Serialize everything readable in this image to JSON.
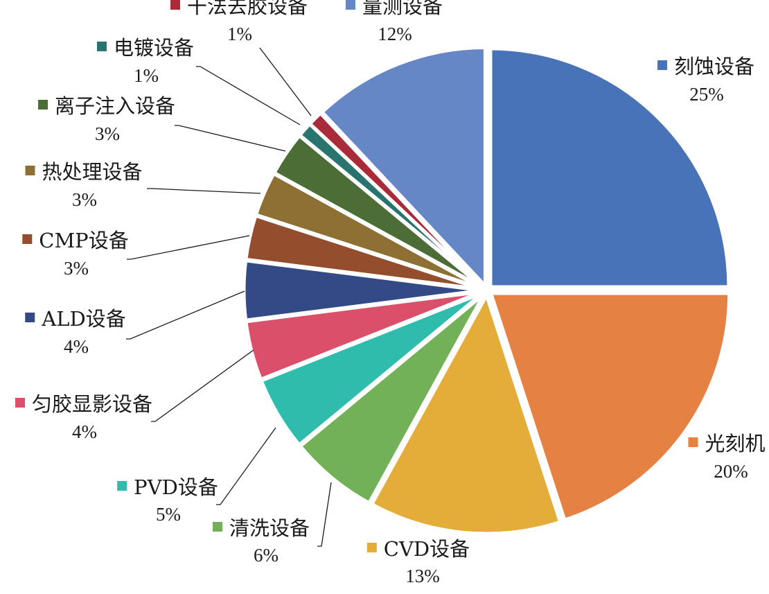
{
  "chart_data": {
    "type": "pie",
    "start_angle_deg": 0,
    "direction": "clockwise",
    "exploded": "all",
    "slices": [
      {
        "name": "刻蚀设备",
        "value": 25,
        "label": "25%",
        "color": "#4873b8"
      },
      {
        "name": "光刻机",
        "value": 20,
        "label": "20%",
        "color": "#e48143"
      },
      {
        "name": "CVD设备",
        "value": 13,
        "label": "13%",
        "color": "#e4ac38"
      },
      {
        "name": "清洗设备",
        "value": 6,
        "label": "6%",
        "color": "#72b157"
      },
      {
        "name": "PVD设备",
        "value": 5,
        "label": "5%",
        "color": "#2fbcac"
      },
      {
        "name": "匀胶显影设备",
        "value": 4,
        "label": "4%",
        "color": "#da506a"
      },
      {
        "name": "ALD设备",
        "value": 4,
        "label": "4%",
        "color": "#334a86"
      },
      {
        "name": "CMP设备",
        "value": 3,
        "label": "3%",
        "color": "#944d2d"
      },
      {
        "name": "热处理设备",
        "value": 3,
        "label": "3%",
        "color": "#8f7034"
      },
      {
        "name": "离子注入设备",
        "value": 3,
        "label": "3%",
        "color": "#4c6d35"
      },
      {
        "name": "电镀设备",
        "value": 1,
        "label": "1%",
        "color": "#2a7470"
      },
      {
        "name": "干法去胶设备",
        "value": 1,
        "label": "1%",
        "color": "#a92b3a"
      },
      {
        "name": "量测设备",
        "value": 12,
        "label": "12%",
        "color": "#6687c6"
      }
    ]
  }
}
